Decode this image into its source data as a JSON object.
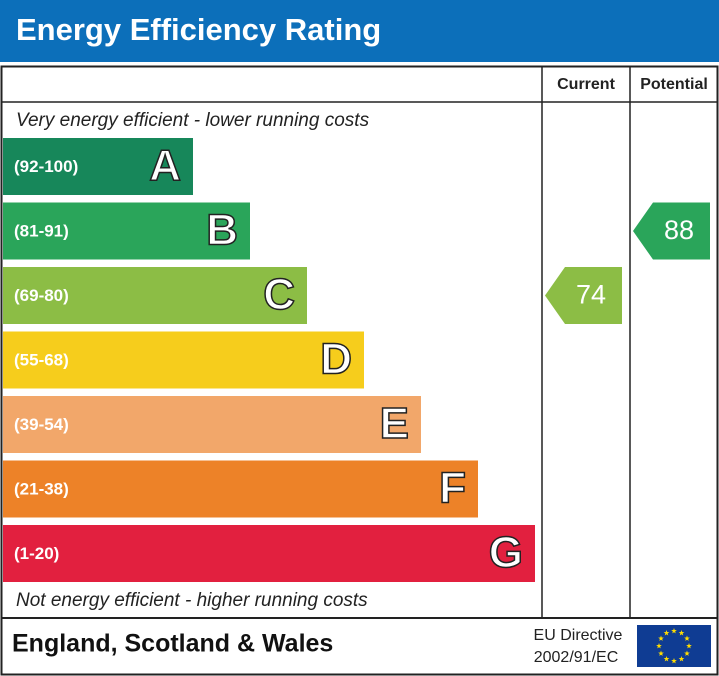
{
  "header": {
    "title": "Energy Efficiency Rating"
  },
  "columns": [
    "Current",
    "Potential"
  ],
  "top_note": "Very energy efficient - lower running costs",
  "bands": [
    {
      "range": "(92-100)",
      "letter": "A",
      "color": "#17875a"
    },
    {
      "range": "(81-91)",
      "letter": "B",
      "color": "#2aa55a"
    },
    {
      "range": "(69-80)",
      "letter": "C",
      "color": "#8cbd45"
    },
    {
      "range": "(55-68)",
      "letter": "D",
      "color": "#f6cd1c"
    },
    {
      "range": "(39-54)",
      "letter": "E",
      "color": "#f2a76a"
    },
    {
      "range": "(21-38)",
      "letter": "F",
      "color": "#ed8228"
    },
    {
      "range": "(1-20)",
      "letter": "G",
      "color": "#e2203f"
    }
  ],
  "current": {
    "value": 74
  },
  "potential": {
    "value": 88
  },
  "bottom_note": "Not energy efficient - higher running costs",
  "footer": {
    "region": "England, Scotland & Wales",
    "directive": [
      "EU Directive",
      "2002/91/EC"
    ]
  }
}
